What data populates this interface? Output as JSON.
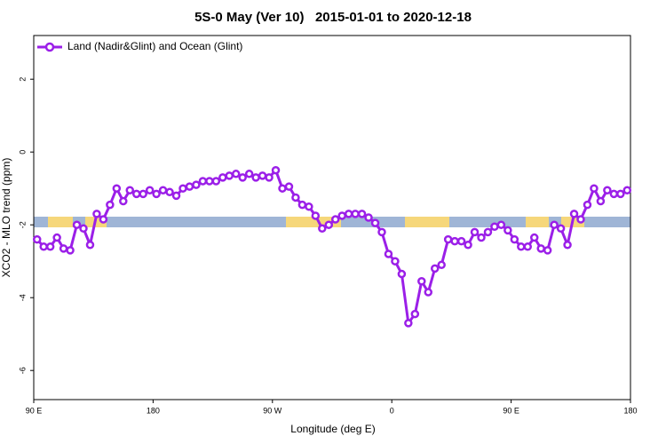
{
  "chart_data": {
    "type": "line",
    "title": "5S-0 May (Ver 10)   2015-01-01 to 2020-12-18",
    "x_label": "Longitude (deg E)",
    "y_label": "XCO2 - MLO trend (ppm)",
    "xlim": [
      90,
      540
    ],
    "ylim": [
      -6.8,
      3.2
    ],
    "xticks": [
      {
        "value": 90,
        "label": "90 E"
      },
      180,
      {
        "value": 270,
        "label": "90 W"
      },
      {
        "value": 360,
        "label": "0"
      },
      {
        "value": 450,
        "label": "90 E"
      },
      {
        "value": 540,
        "label": "180"
      }
    ],
    "yticks": [
      2,
      0,
      -2,
      -4,
      -6
    ],
    "grid": false,
    "legend": "top-left",
    "x": [
      92.5,
      97.5,
      102.5,
      107.5,
      112.5,
      117.5,
      122.5,
      127.5,
      132.5,
      137.5,
      142.5,
      147.5,
      152.5,
      157.5,
      162.5,
      167.5,
      172.5,
      177.5,
      182.5,
      187.5,
      192.5,
      197.5,
      202.5,
      207.5,
      212.5,
      217.5,
      222.5,
      227.5,
      232.5,
      237.5,
      242.5,
      247.5,
      252.5,
      257.5,
      262.5,
      267.5,
      272.5,
      277.5,
      282.5,
      287.5,
      292.5,
      297.5,
      302.5,
      307.5,
      312.5,
      317.5,
      322.5,
      327.5,
      332.5,
      337.5,
      342.5,
      347.5,
      352.5,
      357.5,
      362.5,
      367.5,
      372.5,
      377.5,
      382.5,
      387.5,
      392.5,
      397.5,
      402.5,
      407.5,
      412.5,
      417.5,
      422.5,
      427.5,
      432.5,
      437.5,
      442.5,
      447.5,
      452.5,
      457.5,
      462.5,
      467.5,
      472.5,
      477.5,
      482.5,
      487.5,
      492.5,
      497.5,
      502.5,
      507.5,
      512.5,
      517.5,
      522.5,
      527.5,
      532.5,
      537.5
    ],
    "series": [
      {
        "name": "Land (Nadir&Glint) and Ocean (Glint)",
        "color": "#9b1fe8",
        "values": [
          -2.4,
          -2.6,
          -2.6,
          -2.35,
          -2.65,
          -2.7,
          -2.0,
          -2.1,
          -2.55,
          -1.7,
          -1.85,
          -1.45,
          -1.0,
          -1.35,
          -1.05,
          -1.15,
          -1.15,
          -1.05,
          -1.15,
          -1.05,
          -1.1,
          -1.2,
          -1.0,
          -0.95,
          -0.9,
          -0.8,
          -0.8,
          -0.8,
          -0.7,
          -0.65,
          -0.6,
          -0.7,
          -0.6,
          -0.7,
          -0.65,
          -0.7,
          -0.5,
          -1.0,
          -0.95,
          -1.25,
          -1.45,
          -1.5,
          -1.75,
          -2.1,
          -2.0,
          -1.85,
          -1.75,
          -1.7,
          -1.7,
          -1.7,
          -1.8,
          -1.95,
          -2.2,
          -2.8,
          -3.0,
          -3.35,
          -4.7,
          -4.45,
          -3.55,
          -3.85,
          -3.2,
          -3.1,
          -2.4,
          -2.45,
          -2.45,
          -2.55,
          -2.2,
          -2.35,
          -2.2,
          -2.05,
          -2.0,
          -2.15,
          -2.4,
          -2.6,
          -2.6,
          -2.35,
          -2.65,
          -2.7,
          -2.0,
          -2.1,
          -2.55,
          -1.7,
          -1.85,
          -1.45,
          -1.0,
          -1.35,
          -1.05,
          -1.15,
          -1.15,
          -1.05
        ]
      }
    ]
  }
}
